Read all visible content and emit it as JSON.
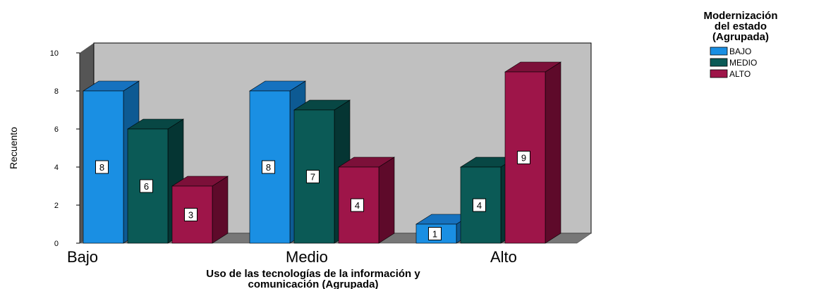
{
  "chart_data": {
    "type": "bar",
    "categories": [
      "Bajo",
      "Medio",
      "Alto"
    ],
    "series": [
      {
        "name": "BAJO",
        "values": [
          8,
          8,
          1
        ],
        "color": "#1a8fe3",
        "side_color": "#0d5a93",
        "top_color": "#1672bf"
      },
      {
        "name": "MEDIO",
        "values": [
          6,
          7,
          4
        ],
        "color": "#0b5a56",
        "side_color": "#053533",
        "top_color": "#084744"
      },
      {
        "name": "ALTO",
        "values": [
          3,
          4,
          9
        ],
        "color": "#9e1549",
        "side_color": "#5e0a2a",
        "top_color": "#7c1039"
      }
    ],
    "xlabel": "Uso de las tecnologías de la información y comunicación (Agrupada)",
    "xlabel_lines": [
      "Uso de las tecnologías de la información y",
      "comunicación (Agrupada)"
    ],
    "ylabel": "Recuento",
    "ylim": [
      0,
      10
    ],
    "yticks": [
      "0",
      "2",
      "4",
      "6",
      "8",
      "10"
    ],
    "legend": {
      "title_lines": [
        "Modernización",
        "del estado",
        "(Agrupada)"
      ],
      "placement": "top-right"
    },
    "grid": false,
    "plot_background": "#c0c0c0"
  }
}
